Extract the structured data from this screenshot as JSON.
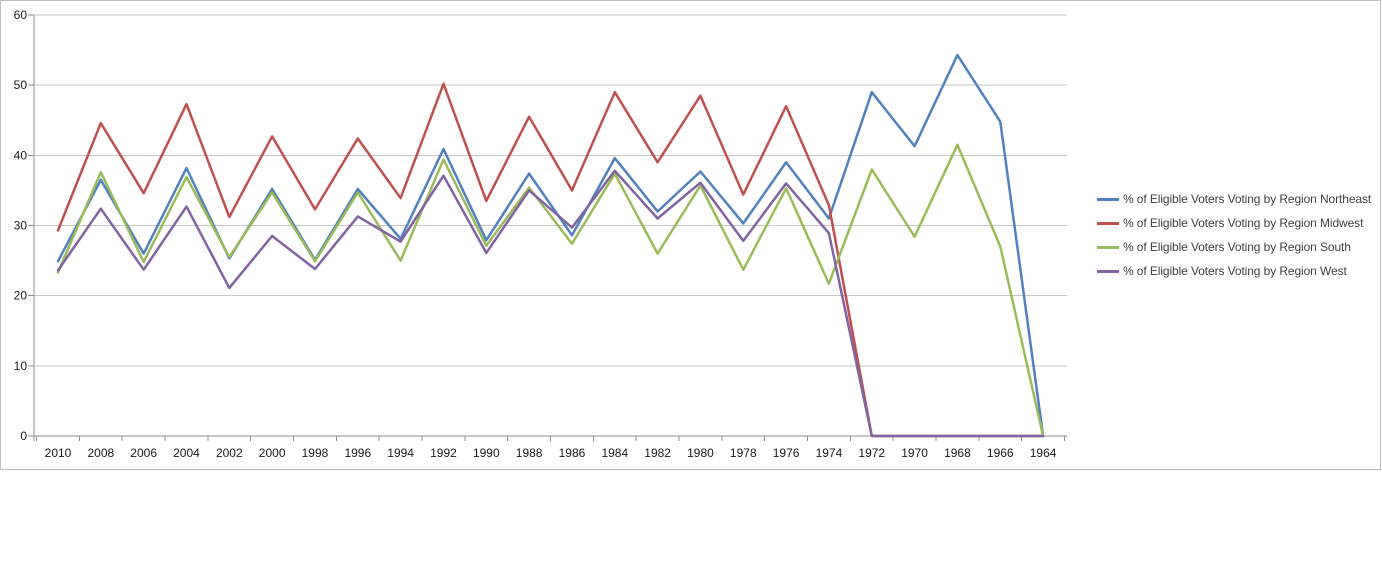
{
  "chart_data": {
    "type": "line",
    "x_labels": [
      "2010",
      "2008",
      "2006",
      "2004",
      "2002",
      "2000",
      "1998",
      "1996",
      "1994",
      "1992",
      "1990",
      "1988",
      "1986",
      "1984",
      "1982",
      "1980",
      "1978",
      "1976",
      "1974",
      "1972",
      "1970",
      "1968",
      "1966",
      "1964"
    ],
    "x_order": "descending_years",
    "y_ticks": [
      0,
      10,
      20,
      30,
      40,
      50,
      60
    ],
    "ylim": [
      0,
      60
    ],
    "grid": true,
    "legend_position": "right",
    "series": [
      {
        "name": "% of Eligible Voters Voting by Region Northeast",
        "color": "#4F81BD",
        "values": [
          24.9,
          36.5,
          26.0,
          38.2,
          25.3,
          35.2,
          25.1,
          35.2,
          28.1,
          40.9,
          27.9,
          37.4,
          28.6,
          39.6,
          32.0,
          37.7,
          30.3,
          39.0,
          31.0,
          49.0,
          41.3,
          54.3,
          44.8,
          0
        ]
      },
      {
        "name": "% of Eligible Voters Voting by Region Midwest",
        "color": "#C0504D",
        "values": [
          29.3,
          44.6,
          34.6,
          47.3,
          31.2,
          42.7,
          32.3,
          42.4,
          33.9,
          50.2,
          33.5,
          45.5,
          35.0,
          49.0,
          39.0,
          48.5,
          34.4,
          47.0,
          32.9,
          0,
          0,
          0,
          0,
          0
        ]
      },
      {
        "name": "% of Eligible Voters Voting by Region South",
        "color": "#9BBB59",
        "values": [
          23.3,
          37.6,
          24.8,
          36.9,
          25.5,
          34.7,
          24.9,
          34.7,
          25.0,
          39.4,
          27.1,
          35.4,
          27.4,
          37.4,
          26.0,
          35.7,
          23.7,
          35.3,
          21.7,
          38.0,
          28.4,
          41.5,
          27.0,
          0
        ]
      },
      {
        "name": "% of Eligible Voters Voting by Region West",
        "color": "#8064A2",
        "values": [
          23.6,
          32.4,
          23.7,
          32.7,
          21.1,
          28.5,
          23.8,
          31.3,
          27.7,
          37.1,
          26.1,
          35.0,
          29.7,
          37.8,
          31.0,
          36.1,
          27.8,
          36.0,
          28.9,
          0,
          0,
          0,
          0,
          0
        ]
      }
    ]
  },
  "colors": {
    "gridline": "#c6c6c6",
    "axis": "#8e8e8e",
    "tick_text": "#1a1a1a",
    "frame": "#bdbdbd",
    "background": "#ffffff"
  }
}
